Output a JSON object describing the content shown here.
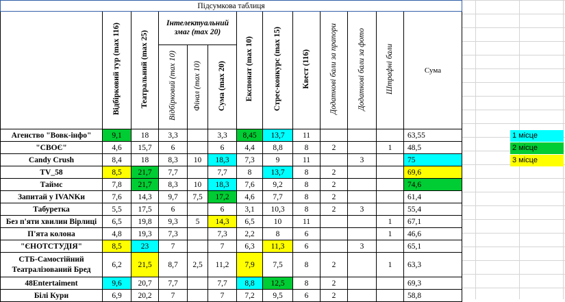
{
  "title": "Підсумкова таблиця",
  "headers": {
    "qualifying": "Відбірковий тур (max 116)",
    "theatrical": "Театральний (max 25)",
    "intellectual": "Інтелектуальний змаг (max 20)",
    "intel_qualifying": "Відбірковий (max 10)",
    "intel_final": "Фінал (max 10)",
    "intel_sum": "Сума (max 20)",
    "exhibit": "Експонат (max 10)",
    "stress": "Стрес-конкурс (max 15)",
    "quest": "Квест (116)",
    "extra_flag": "Додаткові бали за прапори",
    "extra_photo": "Додаткові бали за фото",
    "penalty": "Штрафні бали",
    "total": "Сума"
  },
  "teams": [
    {
      "name": "Агенство \"Вовк-інфо\"",
      "v": [
        "9,1",
        "18",
        "3,3",
        "",
        "3,3",
        "8,45",
        "13,7",
        "11",
        "",
        "",
        "",
        "63,55"
      ],
      "hl": [
        "g",
        "",
        "",
        "",
        "",
        "g",
        "c",
        "",
        "",
        "",
        "",
        ""
      ]
    },
    {
      "name": "\"СВОЄ\"",
      "v": [
        "4,6",
        "15,7",
        "6",
        "",
        "6",
        "4,4",
        "8,8",
        "8",
        "2",
        "",
        "1",
        "48,5"
      ],
      "hl": [
        "",
        "",
        "",
        "",
        "",
        "",
        "",
        "",
        "",
        "",
        "",
        ""
      ]
    },
    {
      "name": "Candy Crush",
      "v": [
        "8,4",
        "18",
        "8,3",
        "10",
        "18,3",
        "7,3",
        "9",
        "11",
        "",
        "3",
        "",
        "75"
      ],
      "hl": [
        "",
        "",
        "",
        "",
        "c",
        "",
        "",
        "",
        "",
        "",
        "",
        "c"
      ]
    },
    {
      "name": "TV_58",
      "v": [
        "8,5",
        "21,7",
        "7,7",
        "",
        "7,7",
        "8",
        "13,7",
        "8",
        "2",
        "",
        "",
        "69,6"
      ],
      "hl": [
        "y",
        "g",
        "",
        "",
        "",
        "",
        "c",
        "",
        "",
        "",
        "",
        "y"
      ]
    },
    {
      "name": "Таймс",
      "v": [
        "7,8",
        "21,7",
        "8,3",
        "10",
        "18,3",
        "7,6",
        "9,2",
        "8",
        "2",
        "",
        "",
        "74,6"
      ],
      "hl": [
        "",
        "g",
        "",
        "",
        "c",
        "",
        "",
        "",
        "",
        "",
        "",
        "g"
      ]
    },
    {
      "name": "Запитай у IVANKи",
      "v": [
        "7,6",
        "14,3",
        "9,7",
        "7,5",
        "17,2",
        "4,6",
        "7,7",
        "8",
        "2",
        "",
        "",
        "61,4"
      ],
      "hl": [
        "",
        "",
        "",
        "",
        "g",
        "",
        "",
        "",
        "",
        "",
        "",
        ""
      ]
    },
    {
      "name": "Табуретка",
      "v": [
        "5,5",
        "17,5",
        "6",
        "",
        "6",
        "3,1",
        "10,3",
        "8",
        "2",
        "3",
        "",
        "55,4"
      ],
      "hl": [
        "",
        "",
        "",
        "",
        "",
        "",
        "",
        "",
        "",
        "",
        "",
        ""
      ]
    },
    {
      "name": "Без п'яти хвилин Вірлиці",
      "v": [
        "6,5",
        "19,8",
        "9,3",
        "5",
        "14,3",
        "6,5",
        "10",
        "11",
        "",
        "",
        "1",
        "67,1"
      ],
      "hl": [
        "",
        "",
        "",
        "",
        "y",
        "",
        "",
        "",
        "",
        "",
        "",
        ""
      ]
    },
    {
      "name": "П'ята колона",
      "v": [
        "4,8",
        "19,3",
        "7,3",
        "",
        "7,3",
        "2,2",
        "8",
        "6",
        "",
        "",
        "1",
        "46,6"
      ],
      "hl": [
        "",
        "",
        "",
        "",
        "",
        "",
        "",
        "",
        "",
        "",
        "",
        ""
      ]
    },
    {
      "name": "\"ЄНОТСТУДІЯ\"",
      "v": [
        "8,5",
        "23",
        "7",
        "",
        "7",
        "6,3",
        "11,3",
        "6",
        "",
        "3",
        "",
        "65,1"
      ],
      "hl": [
        "y",
        "c",
        "",
        "",
        "",
        "",
        "y",
        "",
        "",
        "",
        "",
        ""
      ]
    },
    {
      "name": "СТБ-Самостійний Театралізований Бред",
      "v": [
        "6,2",
        "21,5",
        "8,7",
        "2,5",
        "11,2",
        "7,9",
        "7,5",
        "8",
        "2",
        "",
        "1",
        "63,3"
      ],
      "hl": [
        "",
        "y",
        "",
        "",
        "",
        "y",
        "",
        "",
        "",
        "",
        "",
        ""
      ],
      "two": true
    },
    {
      "name": "48Entertaiment",
      "v": [
        "9,6",
        "20,7",
        "7,7",
        "",
        "7,7",
        "8,8",
        "12,5",
        "8",
        "2",
        "",
        "",
        "69,3"
      ],
      "hl": [
        "c",
        "",
        "",
        "",
        "",
        "c",
        "g",
        "",
        "",
        "",
        "",
        ""
      ]
    },
    {
      "name": "Білі Кури",
      "v": [
        "6,9",
        "20,2",
        "7",
        "",
        "7",
        "7,2",
        "9,5",
        "6",
        "2",
        "",
        "",
        "58,8"
      ],
      "hl": [
        "",
        "",
        "",
        "",
        "",
        "",
        "",
        "",
        "",
        "",
        "",
        ""
      ]
    }
  ],
  "legend": {
    "first": "1 місце",
    "second": "2 місце",
    "third": "3 місце",
    "colors": {
      "first": "#00ffff",
      "second": "#00cc33",
      "third": "#ffff00"
    }
  }
}
